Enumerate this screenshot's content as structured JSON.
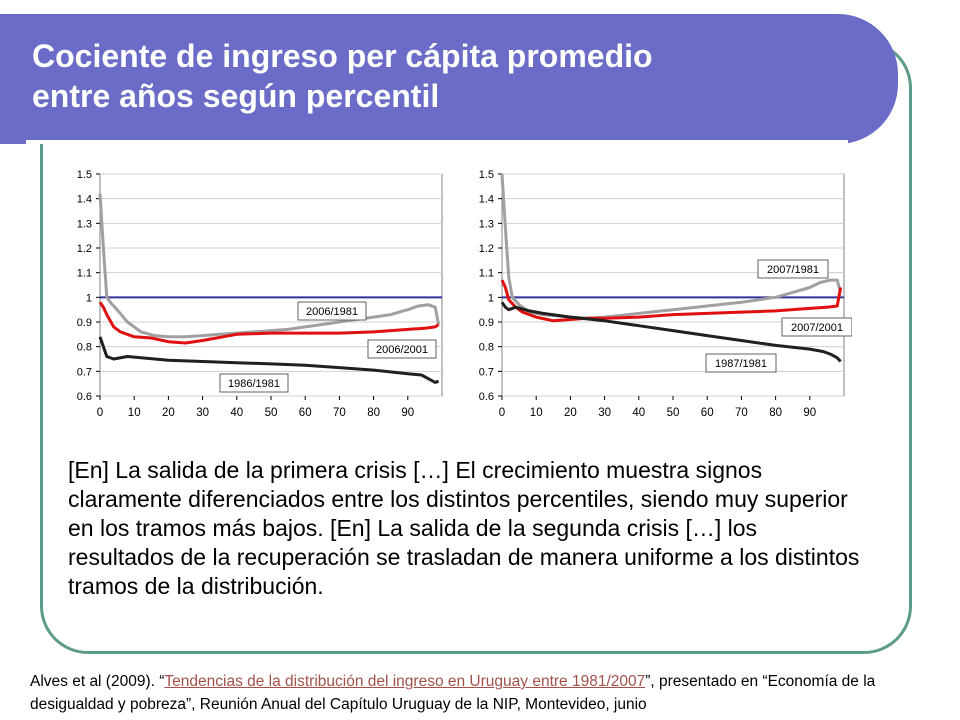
{
  "title": {
    "line1": "Cociente de ingreso per cápita promedio",
    "line2": "entre años según percentil"
  },
  "colors": {
    "title_bar": "#6a6cc8",
    "frame": "#5c9a8a",
    "reference_line": "#333399",
    "series_gray": "#a0a0a0",
    "series_red": "#e01010",
    "series_black": "#202020",
    "link": "#a3524a"
  },
  "chart_data": [
    {
      "type": "line",
      "x_ticks": [
        "0",
        "10",
        "20",
        "30",
        "40",
        "50",
        "60",
        "70",
        "80",
        "90"
      ],
      "y_ticks": [
        "1.5",
        "1.4",
        "1.3",
        "1.2",
        "1.1",
        "1",
        "0.9",
        "0.8",
        "0.7",
        "0.6"
      ],
      "xlim": [
        0,
        100
      ],
      "ylim": [
        0.6,
        1.5
      ],
      "grid": "horizontal",
      "reference_line": 1,
      "series": [
        {
          "name": "2006/1981",
          "color": "#a0a0a0",
          "x": [
            0,
            1,
            2,
            3,
            5,
            8,
            12,
            16,
            20,
            25,
            30,
            35,
            40,
            45,
            50,
            55,
            60,
            65,
            70,
            75,
            80,
            85,
            90,
            93,
            96,
            98,
            99
          ],
          "y": [
            1.42,
            1.2,
            1.0,
            0.98,
            0.95,
            0.9,
            0.86,
            0.845,
            0.84,
            0.84,
            0.845,
            0.85,
            0.855,
            0.86,
            0.865,
            0.87,
            0.88,
            0.89,
            0.9,
            0.91,
            0.92,
            0.93,
            0.95,
            0.965,
            0.97,
            0.96,
            0.89
          ]
        },
        {
          "name": "2006/2001",
          "color": "#e01010",
          "x": [
            0,
            1,
            2,
            4,
            6,
            10,
            15,
            20,
            25,
            30,
            40,
            50,
            60,
            70,
            80,
            90,
            95,
            98,
            99
          ],
          "y": [
            0.98,
            0.96,
            0.93,
            0.88,
            0.86,
            0.84,
            0.835,
            0.82,
            0.815,
            0.825,
            0.85,
            0.855,
            0.855,
            0.855,
            0.86,
            0.87,
            0.875,
            0.88,
            0.89
          ]
        },
        {
          "name": "1986/1981",
          "color": "#202020",
          "x": [
            0,
            1,
            2,
            4,
            8,
            12,
            20,
            30,
            40,
            50,
            60,
            70,
            80,
            90,
            94,
            96,
            98,
            99
          ],
          "y": [
            0.84,
            0.8,
            0.76,
            0.75,
            0.76,
            0.755,
            0.745,
            0.74,
            0.735,
            0.73,
            0.725,
            0.715,
            0.705,
            0.69,
            0.685,
            0.67,
            0.655,
            0.66
          ]
        }
      ],
      "annotations": [
        "2006/1981",
        "2006/2001",
        "1986/1981"
      ]
    },
    {
      "type": "line",
      "x_ticks": [
        "0",
        "10",
        "20",
        "30",
        "40",
        "50",
        "60",
        "70",
        "80",
        "90"
      ],
      "y_ticks": [
        "1.5",
        "1.4",
        "1.3",
        "1.2",
        "1.1",
        "1",
        "0.9",
        "0.8",
        "0.7",
        "0.6"
      ],
      "xlim": [
        0,
        100
      ],
      "ylim": [
        0.6,
        1.5
      ],
      "grid": "horizontal",
      "reference_line": 1,
      "series": [
        {
          "name": "2007/1981",
          "color": "#a0a0a0",
          "x": [
            0,
            1,
            2,
            3,
            5,
            8,
            12,
            16,
            20,
            25,
            30,
            40,
            50,
            60,
            70,
            80,
            85,
            90,
            93,
            96,
            98,
            99
          ],
          "y": [
            1.5,
            1.28,
            1.08,
            1.0,
            0.97,
            0.94,
            0.93,
            0.925,
            0.92,
            0.915,
            0.92,
            0.935,
            0.95,
            0.965,
            0.98,
            1.0,
            1.02,
            1.04,
            1.06,
            1.07,
            1.07,
            1.02
          ]
        },
        {
          "name": "2007/2001",
          "color": "#e01010",
          "x": [
            0,
            1,
            2,
            4,
            6,
            10,
            15,
            20,
            25,
            30,
            40,
            50,
            60,
            70,
            80,
            90,
            95,
            98,
            99
          ],
          "y": [
            1.07,
            1.04,
            0.99,
            0.96,
            0.94,
            0.92,
            0.905,
            0.91,
            0.915,
            0.915,
            0.92,
            0.93,
            0.935,
            0.94,
            0.945,
            0.955,
            0.96,
            0.965,
            1.04
          ]
        },
        {
          "name": "1987/1981",
          "color": "#202020",
          "x": [
            0,
            1,
            2,
            4,
            8,
            12,
            20,
            30,
            40,
            50,
            60,
            70,
            80,
            90,
            94,
            96,
            98,
            99
          ],
          "y": [
            0.98,
            0.96,
            0.95,
            0.96,
            0.945,
            0.935,
            0.92,
            0.905,
            0.885,
            0.865,
            0.845,
            0.825,
            0.805,
            0.79,
            0.78,
            0.77,
            0.755,
            0.74
          ]
        }
      ],
      "annotations": [
        "2007/1981",
        "2007/2001",
        "1987/1981"
      ]
    }
  ],
  "body_text": "[En] La salida de la primera crisis […] El crecimiento muestra signos claramente diferenciados entre los distintos percentiles, siendo muy superior en los tramos más bajos. [En]  La salida de la segunda crisis […] los resultados de la recuperación se trasladan de manera uniforme a los distintos tramos de la distribución.",
  "citation": {
    "prefix": "Alves et al (2009). “",
    "link_text": "Tendencias de la distribución del ingreso en Uruguay entre 1981/2007",
    "suffix": "”, presentado en “Economía de la desigualdad y pobreza”, Reunión Anual del Capítulo Uruguay de la  NIP, Montevideo, junio"
  }
}
